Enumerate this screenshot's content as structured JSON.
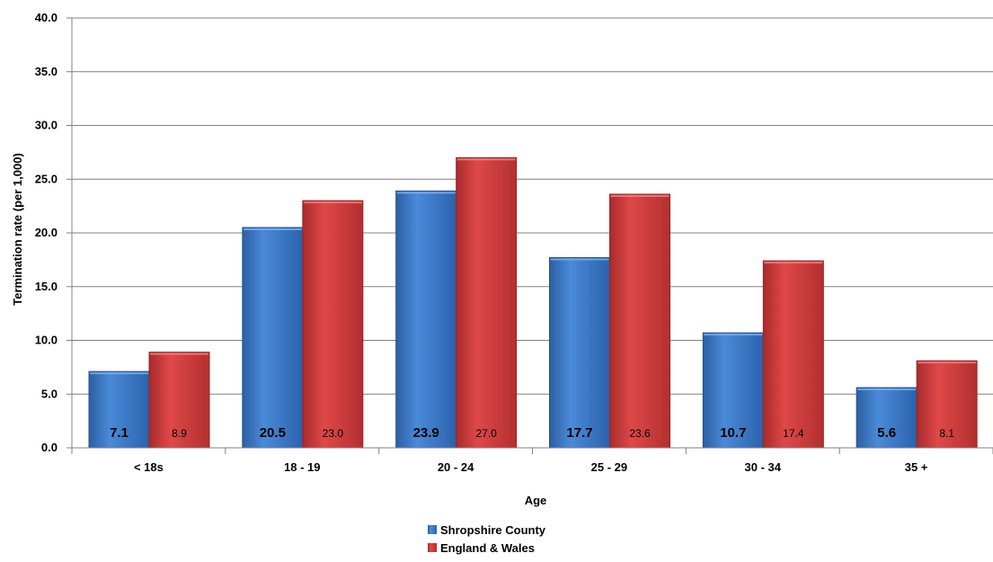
{
  "chart_data": {
    "type": "bar",
    "categories": [
      "< 18s",
      "18 - 19",
      "20 - 24",
      "25 - 29",
      "30 - 34",
      "35 +"
    ],
    "series": [
      {
        "name": "Shropshire County",
        "values": [
          7.1,
          20.5,
          23.9,
          17.7,
          10.7,
          5.6
        ],
        "labels": [
          "7.1",
          "20.5",
          "23.9",
          "17.7",
          "10.7",
          "5.6"
        ],
        "color": "#3a78c8"
      },
      {
        "name": "England & Wales",
        "values": [
          8.9,
          23.0,
          27.0,
          23.6,
          17.4,
          8.1
        ],
        "labels": [
          "8.9",
          "23.0",
          "27.0",
          "23.6",
          "17.4",
          "8.1"
        ],
        "color": "#cf3a3a"
      }
    ],
    "xlabel": "Age",
    "ylabel": "Termination rate (per 1,000)",
    "ylim": [
      0,
      40
    ],
    "yticks": [
      "0.0",
      "5.0",
      "10.0",
      "15.0",
      "20.0",
      "25.0",
      "30.0",
      "35.0",
      "40.0"
    ],
    "grid": true,
    "legend_position": "bottom"
  }
}
